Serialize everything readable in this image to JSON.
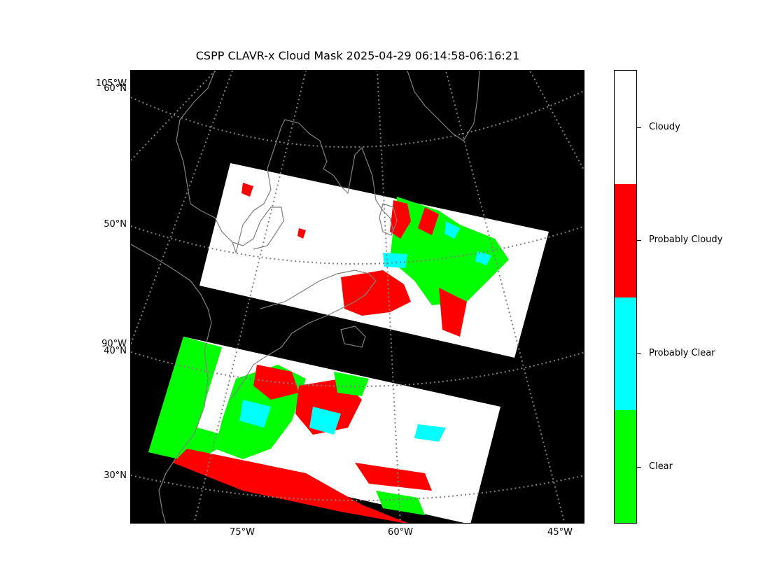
{
  "title": "CSPP CLAVR-x Cloud Mask 2025-04-29 06:14:58-06:16:21",
  "map": {
    "background": "#000000",
    "gridline_color": "#808080",
    "coastline_color": "#808080",
    "lat_labels": [
      "60°N",
      "50°N",
      "40°N",
      "30°N"
    ],
    "extra_lon_labels": [
      "105°W",
      "90°W"
    ],
    "lon_labels": [
      "75°W",
      "60°W",
      "45°W"
    ]
  },
  "colorbar": {
    "categories": [
      {
        "label": "Cloudy",
        "color": "#ffffff"
      },
      {
        "label": "Probably Cloudy",
        "color": "#ff0000"
      },
      {
        "label": "Probably Clear",
        "color": "#00ffff"
      },
      {
        "label": "Clear",
        "color": "#00ff00"
      }
    ]
  }
}
